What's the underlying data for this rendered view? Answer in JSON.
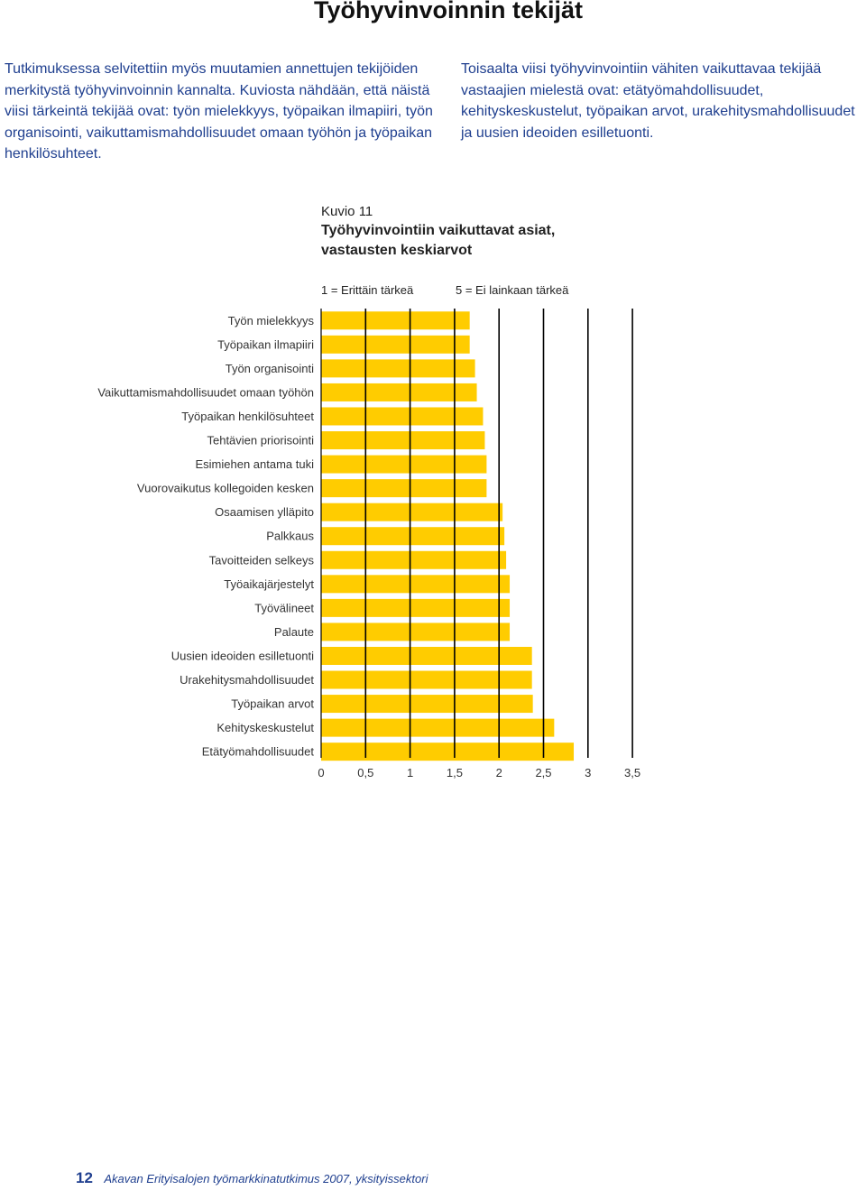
{
  "page": {
    "title": "Työhyvinvoinnin tekijät",
    "paragraph_left": "Tutkimuksessa selvitettiin myös muutamien annettujen tekijöiden merkitystä työhyvinvoinnin kannalta. Kuviosta nähdään, että näistä viisi tärkeintä tekijää ovat: työn mielekkyys, työpaikan ilmapiiri, työn organisointi, vaikuttamismahdollisuudet omaan työhön ja työpaikan henkilösuhteet.",
    "paragraph_right": "Toisaalta viisi työhyvinvointiin vähiten vaikuttavaa tekijää vastaajien mielestä ovat: etätyömahdollisuudet, kehityskeskustelut, työpaikan arvot, urakehitysmahdollisuudet ja uusien ideoiden esilletuonti.",
    "figure_number": "Kuvio 11",
    "figure_title": "Työhyvinvointiin vaikuttavat asiat, vastausten keskiarvot",
    "scale_note_left": "1 = Erittäin tärkeä",
    "scale_note_right": "5 = Ei lainkaan tärkeä",
    "footer_page": "12",
    "footer_publication": "Akavan Erityisalojen työmarkkinatutkimus 2007, yksityissektori"
  },
  "colors": {
    "bar": "#ffcc00",
    "gridline": "#000000",
    "label_text": "#333333",
    "body_text": "#1f3f8f"
  },
  "chart_data": {
    "type": "bar",
    "orientation": "horizontal",
    "categories": [
      "Työn mielekkyys",
      "Työpaikan ilmapiiri",
      "Työn organisointi",
      "Vaikuttamismahdollisuudet omaan työhön",
      "Työpaikan henkilösuhteet",
      "Tehtävien priorisointi",
      "Esimiehen antama tuki",
      "Vuorovaikutus kollegoiden kesken",
      "Osaamisen ylläpito",
      "Palkkaus",
      "Tavoitteiden selkeys",
      "Työaikajärjestelyt",
      "Työvälineet",
      "Palaute",
      "Uusien ideoiden esilletuonti",
      "Urakehitysmahdollisuudet",
      "Työpaikan arvot",
      "Kehityskeskustelut",
      "Etätyömahdollisuudet"
    ],
    "values": [
      1.67,
      1.67,
      1.73,
      1.75,
      1.82,
      1.84,
      1.86,
      1.86,
      2.04,
      2.06,
      2.08,
      2.12,
      2.12,
      2.12,
      2.37,
      2.37,
      2.38,
      2.62,
      2.84
    ],
    "xlim": [
      0,
      3.5
    ],
    "x_ticks": [
      0,
      0.5,
      1,
      1.5,
      2,
      2.5,
      3,
      3.5
    ],
    "x_tick_labels": [
      "0",
      "0,5",
      "1",
      "1,5",
      "2",
      "2,5",
      "3",
      "3,5"
    ],
    "grid": "vertical",
    "legend": "none"
  }
}
